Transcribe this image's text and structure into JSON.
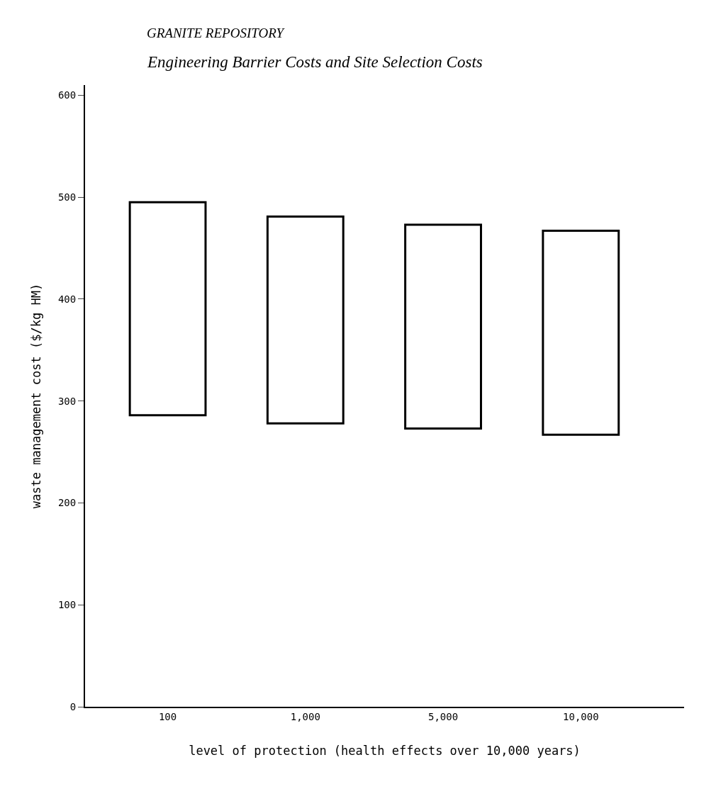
{
  "chart_data": {
    "type": "bar",
    "title": "GRANITE REPOSITORY",
    "subtitle": "Engineering Barrier Costs and Site Selection Costs",
    "xlabel": "level of protection (health effects over 10,000 years)",
    "ylabel": "waste management cost ($/kg HM)",
    "categories": [
      "100",
      "1,000",
      "5,000",
      "10,000"
    ],
    "base": [
      286,
      278,
      273,
      267
    ],
    "values": [
      209,
      203,
      200,
      200
    ],
    "color": "#ffffff",
    "ylim": [
      0,
      610
    ],
    "yticks": [
      0,
      100,
      200,
      300,
      400,
      500,
      600
    ]
  }
}
